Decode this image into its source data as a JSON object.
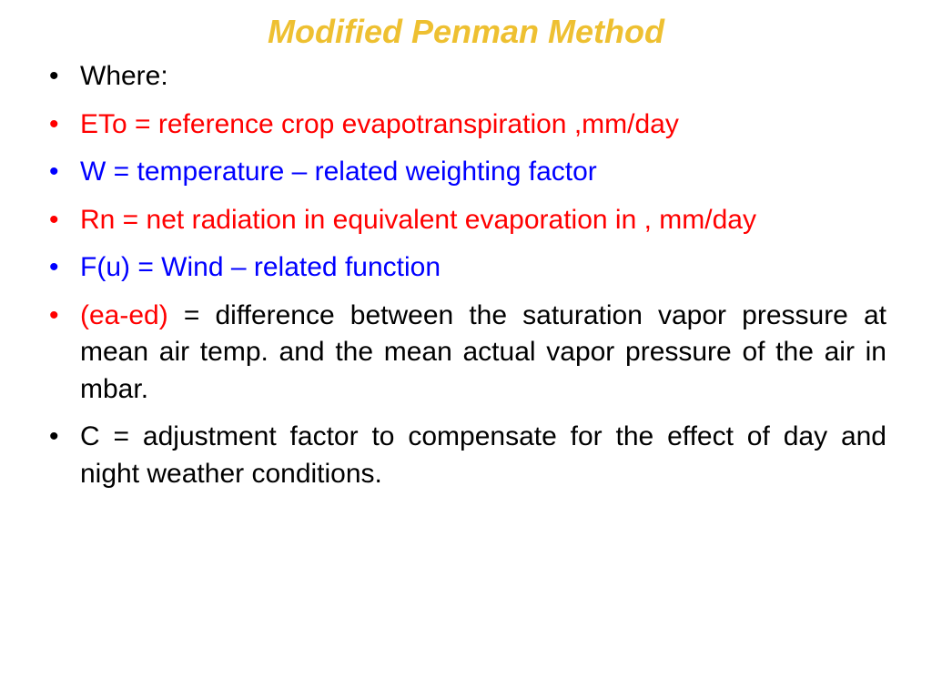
{
  "colors": {
    "title": "#eec031",
    "black": "#000000",
    "red": "#ff0000",
    "blue": "#0000ff",
    "background": "#ffffff"
  },
  "typography": {
    "title_fontsize": 36,
    "body_fontsize": 30,
    "title_style": "bold italic",
    "font_family": "Arial"
  },
  "title": "Modified Penman Method",
  "items": {
    "where": {
      "text": "Where:",
      "bullet_color": "black",
      "text_color": "#000000"
    },
    "eto": {
      "text": "ETo = reference crop evapotranspiration ,mm/day",
      "bullet_color": "red",
      "text_color": "#ff0000"
    },
    "w": {
      "text": "W = temperature – related weighting factor",
      "bullet_color": "blue",
      "text_color": "#0000ff"
    },
    "rn": {
      "text": "Rn = net radiation in equivalent evaporation in , mm/day",
      "bullet_color": "red",
      "text_color": "#ff0000"
    },
    "fu": {
      "text": "F(u) = Wind – related function",
      "bullet_color": "blue",
      "text_color": "#0000ff"
    },
    "eaed": {
      "lead": "(ea-ed)",
      "lead_color": "#ff0000",
      "rest": " = difference between the saturation vapor pressure at mean air temp. and the mean actual vapor pressure of the air in mbar.",
      "rest_color": "#000000",
      "bullet_color": "red"
    },
    "c": {
      "text": "C = adjustment factor to compensate for the effect of day and night weather conditions.",
      "bullet_color": "black",
      "text_color": "#000000"
    }
  }
}
